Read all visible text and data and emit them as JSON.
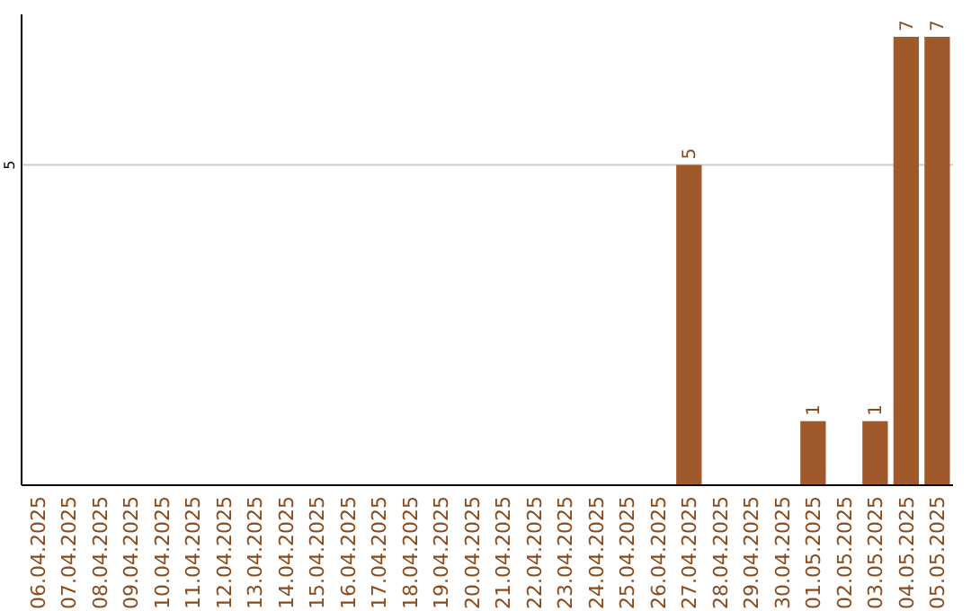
{
  "chart_data": {
    "type": "bar",
    "categories": [
      "06.04.2025",
      "07.04.2025",
      "08.04.2025",
      "09.04.2025",
      "10.04.2025",
      "11.04.2025",
      "12.04.2025",
      "13.04.2025",
      "14.04.2025",
      "15.04.2025",
      "16.04.2025",
      "17.04.2025",
      "18.04.2025",
      "19.04.2025",
      "20.04.2025",
      "21.04.2025",
      "22.04.2025",
      "23.04.2025",
      "24.04.2025",
      "25.04.2025",
      "26.04.2025",
      "27.04.2025",
      "28.04.2025",
      "29.04.2025",
      "30.04.2025",
      "01.05.2025",
      "02.05.2025",
      "03.05.2025",
      "04.05.2025",
      "05.05.2025"
    ],
    "values": [
      null,
      null,
      null,
      null,
      null,
      null,
      null,
      null,
      null,
      null,
      null,
      null,
      null,
      null,
      null,
      null,
      null,
      null,
      null,
      null,
      null,
      5,
      null,
      null,
      null,
      1,
      null,
      1,
      7,
      7
    ],
    "data_labels": true,
    "color": "#a0592a",
    "ylim": [
      0,
      7.35
    ],
    "yticks": [
      5
    ],
    "grid": "y"
  }
}
